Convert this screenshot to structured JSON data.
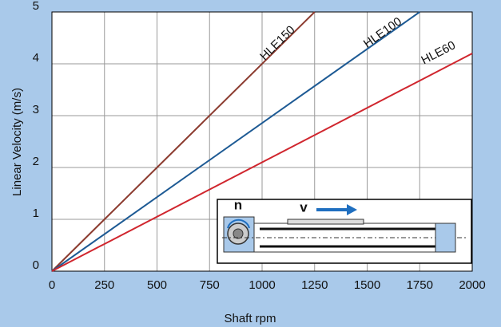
{
  "chart_data": {
    "type": "line",
    "x_label": "Shaft rpm",
    "y_label": "Linear Velocity (m/s)",
    "series": [
      {
        "name": "HLE150",
        "color": "#8b3a2e",
        "x": [
          0,
          1250
        ],
        "values": [
          0,
          5
        ]
      },
      {
        "name": "HLE100",
        "color": "#1d5a94",
        "x": [
          0,
          1750
        ],
        "values": [
          0,
          5
        ]
      },
      {
        "name": "HLE60",
        "color": "#d0262e",
        "x": [
          0,
          2000
        ],
        "values": [
          0,
          4.2
        ]
      }
    ],
    "xlim": [
      0,
      2000
    ],
    "xticks": [
      0,
      250,
      500,
      750,
      1000,
      1250,
      1500,
      1750,
      2000
    ],
    "ylim": [
      0,
      5
    ],
    "yticks": [
      0,
      1,
      2,
      3,
      4,
      5
    ],
    "grid": true,
    "annotations": [
      "n",
      "v"
    ]
  }
}
